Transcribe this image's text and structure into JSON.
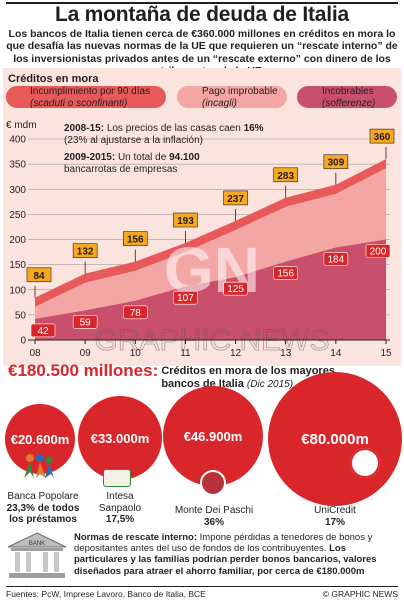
{
  "title": "La montaña de deuda de Italia",
  "intro": "Los bancos de Italia tienen cerca de €360.000 millones en créditos en mora lo que desafía las nuevas normas de la UE que requieren un “rescate interno” de los inversionistas privados antes de un “rescate externo” con dinero de los contribuyentes de la UE",
  "legend": {
    "heading": "Créditos en mora",
    "items": [
      {
        "label": "Incumplimiento por 90 días",
        "sub": "(scaduti o sconfinanti)",
        "color": "#e8595a"
      },
      {
        "label": "Pago improbable",
        "sub": "(incagli)",
        "color": "#f4a6a4"
      },
      {
        "label": "Incobrables",
        "sub": "(sofferenze)",
        "color": "#c9506c"
      }
    ]
  },
  "chart_data": {
    "type": "area",
    "title": "Créditos en mora",
    "ylabel": "€ mdm",
    "ylim": [
      0,
      400
    ],
    "yticks": [
      0,
      50,
      100,
      150,
      200,
      250,
      300,
      350,
      400
    ],
    "x": [
      "08",
      "09",
      "10",
      "11",
      "12",
      "13",
      "14",
      "15"
    ],
    "series": [
      {
        "name": "Incumplimiento por 90 días",
        "values": [
          84,
          132,
          156,
          193,
          237,
          283,
          309,
          360
        ]
      },
      {
        "name": "Incobrables",
        "values": [
          42,
          59,
          78,
          107,
          125,
          156,
          184,
          200
        ]
      }
    ],
    "annotations": [
      {
        "head": "2008-15:",
        "text": "Los precios de las casas caen",
        "value": "16%",
        "text2": "(23% al ajustarse a la inflación)"
      },
      {
        "head": "2009-2015:",
        "text": "Un total de",
        "value": "94.100",
        "text2": "bancarrotas de empresas"
      }
    ]
  },
  "banks_section": {
    "amount": "€180.500 millones:",
    "heading": "Créditos en mora de los mayores bancos de Italia",
    "date": "(Dic 2015)",
    "banks": [
      {
        "value": "€20.600m",
        "name": "Banca Popolare",
        "share": "23,3% de todos los préstamos"
      },
      {
        "value": "€33.000m",
        "name": "Intesa Sanpaolo",
        "share": "17,5%"
      },
      {
        "value": "€46.900m",
        "name": "Monte Dei Paschi",
        "share": "36%"
      },
      {
        "value": "€80.000m",
        "name": "UniCredit",
        "share": "17%"
      }
    ]
  },
  "note": {
    "head": "Normas de rescate interno:",
    "text": "Impone pérdidas a tenedores de bonos y depositantes antes del uso de fondos de los contribuyentes.",
    "bold": "Los particulares y las familias podrían perder bonos bancarios, valores diseñados para atraer el ahorro familiar, por cerca de €180.000m",
    "icon_text": "BANK"
  },
  "footer": {
    "sources": "Fuentes: PcW, Imprese Lavoro, Banco de Italia, BCE",
    "credit": "© GRAPHIC NEWS"
  },
  "watermark": {
    "monogram": "GN",
    "text": "GRAPHIC NEWS"
  },
  "colors": {
    "accent_red": "#d8262b",
    "top_area": "#e8595a",
    "mid_area": "#f4a6a4",
    "bottom_area": "#c9506c",
    "label_gold": "#f7a823"
  }
}
